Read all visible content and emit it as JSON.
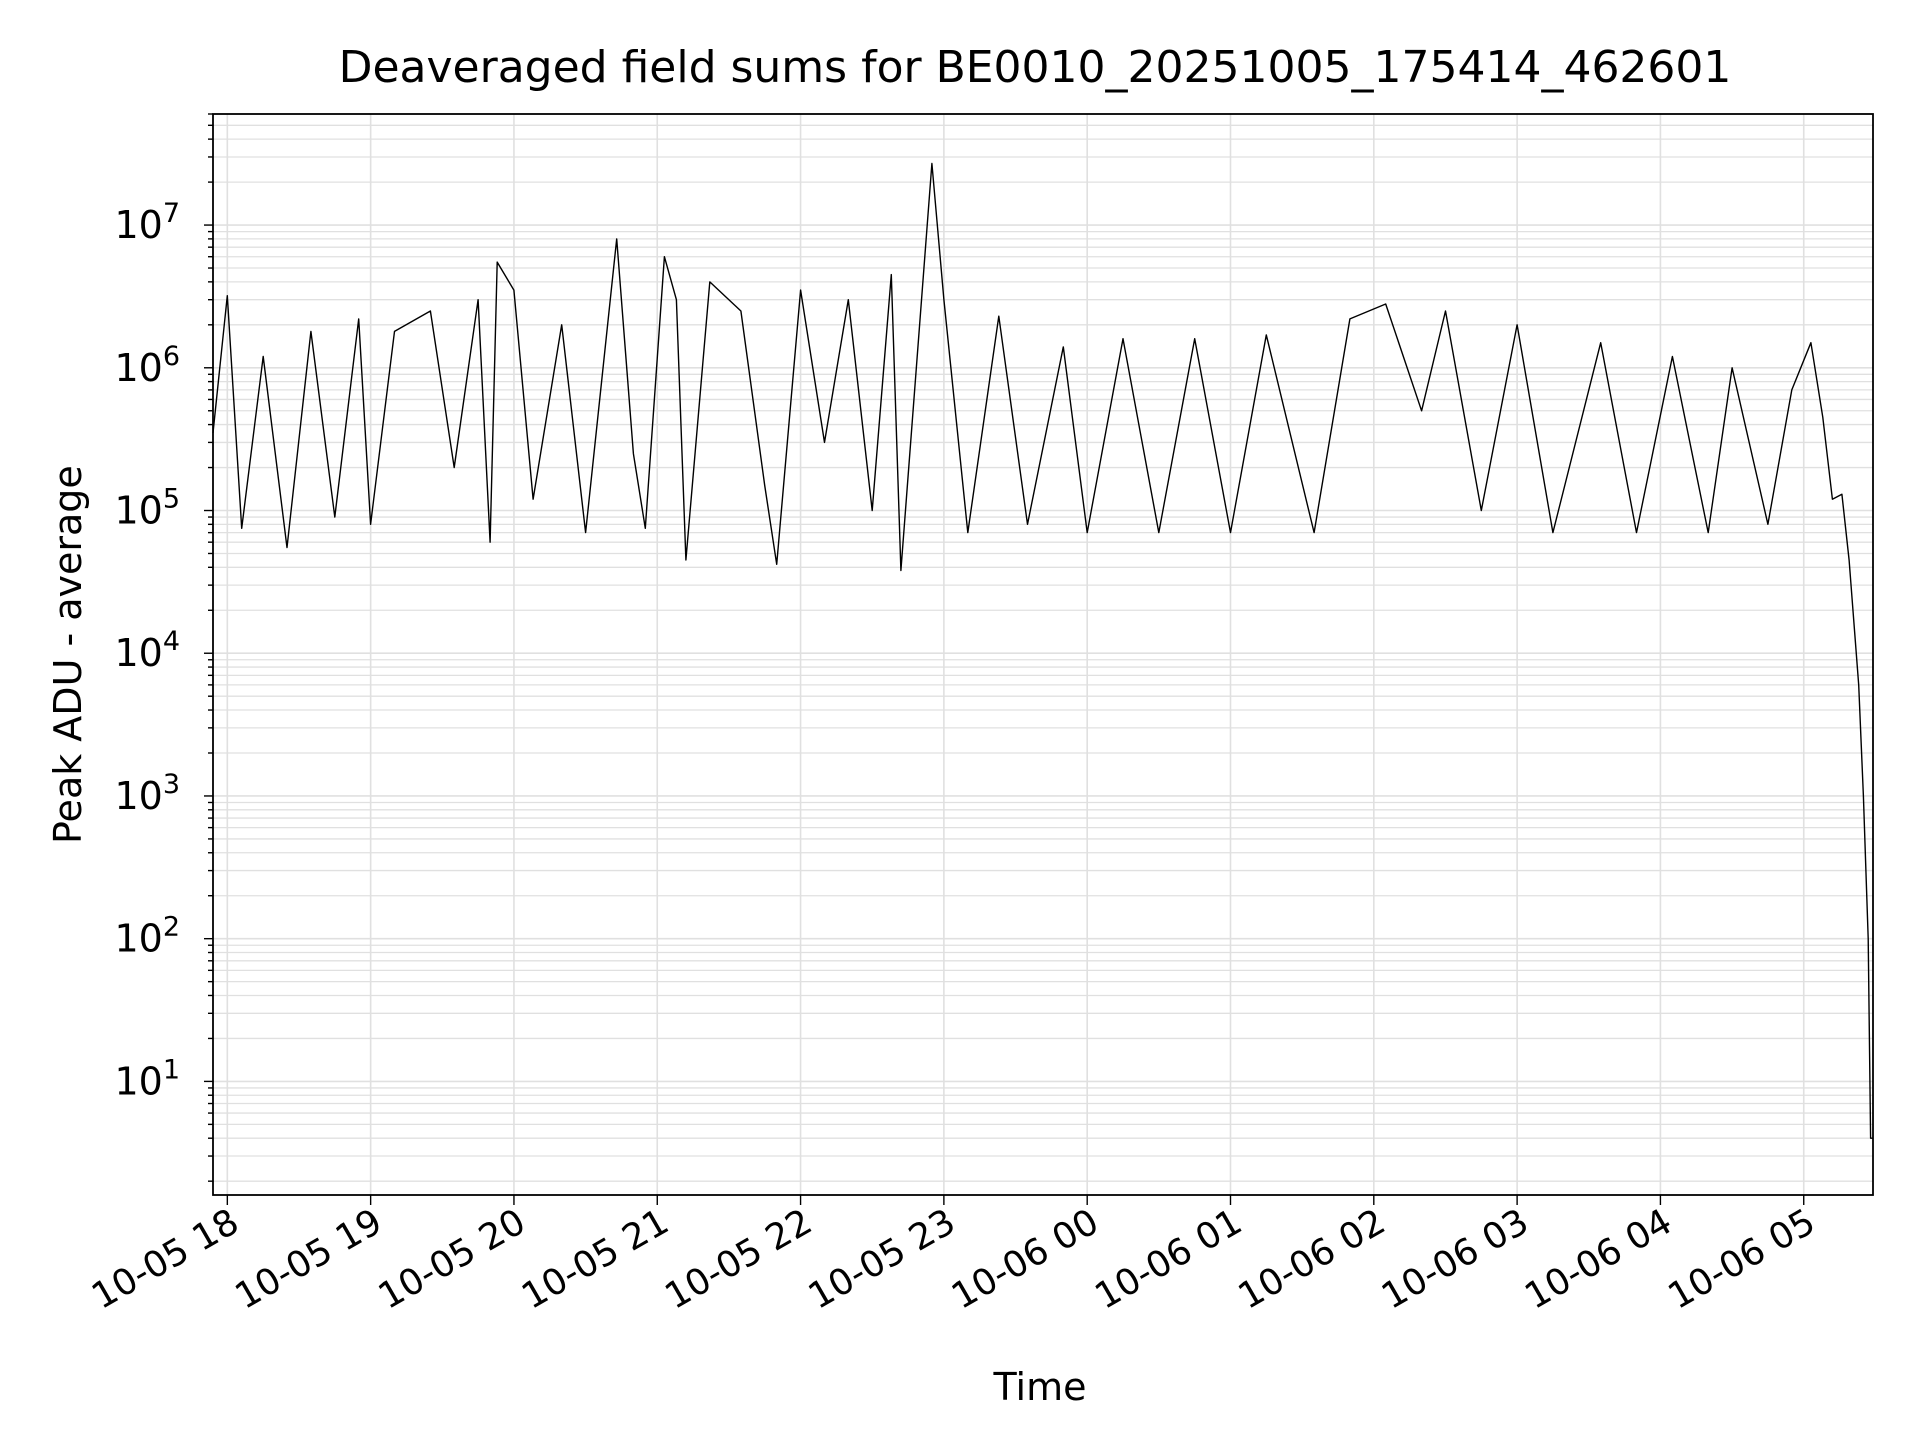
{
  "chart_data": {
    "type": "line",
    "title": "Deaveraged field sums for BE0010_20251005_175414_462601",
    "xlabel": "Time",
    "ylabel": "Peak ADU - average",
    "yscale": "log",
    "grid": true,
    "line_color": "#000000",
    "grid_color": "#e0e0e0",
    "xlim": [
      "2025-10-05 17:54",
      "2025-10-06 05:29"
    ],
    "ylim": [
      1.6,
      60000000
    ],
    "xticks": [
      {
        "t": "2025-10-05 18:00",
        "label": "10-05 18"
      },
      {
        "t": "2025-10-05 19:00",
        "label": "10-05 19"
      },
      {
        "t": "2025-10-05 20:00",
        "label": "10-05 20"
      },
      {
        "t": "2025-10-05 21:00",
        "label": "10-05 21"
      },
      {
        "t": "2025-10-05 22:00",
        "label": "10-05 22"
      },
      {
        "t": "2025-10-05 23:00",
        "label": "10-05 23"
      },
      {
        "t": "2025-10-06 00:00",
        "label": "10-06 00"
      },
      {
        "t": "2025-10-06 01:00",
        "label": "10-06 01"
      },
      {
        "t": "2025-10-06 02:00",
        "label": "10-06 02"
      },
      {
        "t": "2025-10-06 03:00",
        "label": "10-06 03"
      },
      {
        "t": "2025-10-06 04:00",
        "label": "10-06 04"
      },
      {
        "t": "2025-10-06 05:00",
        "label": "10-06 05"
      }
    ],
    "yticks": [
      {
        "value": 10,
        "base": "10",
        "exp": "1"
      },
      {
        "value": 100,
        "base": "10",
        "exp": "2"
      },
      {
        "value": 1000,
        "base": "10",
        "exp": "3"
      },
      {
        "value": 10000,
        "base": "10",
        "exp": "4"
      },
      {
        "value": 100000,
        "base": "10",
        "exp": "5"
      },
      {
        "value": 1000000,
        "base": "10",
        "exp": "6"
      },
      {
        "value": 10000000,
        "base": "10",
        "exp": "7"
      }
    ],
    "series": [
      {
        "points": [
          [
            "2025-10-05 17:54",
            350000
          ],
          [
            "2025-10-05 18:00",
            3200000
          ],
          [
            "2025-10-05 18:06",
            75000
          ],
          [
            "2025-10-05 18:15",
            1200000
          ],
          [
            "2025-10-05 18:25",
            55000
          ],
          [
            "2025-10-05 18:35",
            1800000
          ],
          [
            "2025-10-05 18:45",
            90000
          ],
          [
            "2025-10-05 18:55",
            2200000
          ],
          [
            "2025-10-05 19:00",
            80000
          ],
          [
            "2025-10-05 19:10",
            1800000
          ],
          [
            "2025-10-05 19:25",
            2500000
          ],
          [
            "2025-10-05 19:35",
            200000
          ],
          [
            "2025-10-05 19:45",
            3000000
          ],
          [
            "2025-10-05 19:50",
            60000
          ],
          [
            "2025-10-05 19:53",
            5500000
          ],
          [
            "2025-10-05 20:00",
            3500000
          ],
          [
            "2025-10-05 20:08",
            120000
          ],
          [
            "2025-10-05 20:20",
            2000000
          ],
          [
            "2025-10-05 20:30",
            70000
          ],
          [
            "2025-10-05 20:43",
            8000000
          ],
          [
            "2025-10-05 20:50",
            250000
          ],
          [
            "2025-10-05 20:55",
            75000
          ],
          [
            "2025-10-05 21:03",
            6000000
          ],
          [
            "2025-10-05 21:08",
            3000000
          ],
          [
            "2025-10-05 21:12",
            45000
          ],
          [
            "2025-10-05 21:22",
            4000000
          ],
          [
            "2025-10-05 21:35",
            2500000
          ],
          [
            "2025-10-05 21:45",
            150000
          ],
          [
            "2025-10-05 21:50",
            42000
          ],
          [
            "2025-10-05 22:00",
            3500000
          ],
          [
            "2025-10-05 22:10",
            300000
          ],
          [
            "2025-10-05 22:20",
            3000000
          ],
          [
            "2025-10-05 22:30",
            100000
          ],
          [
            "2025-10-05 22:38",
            4500000
          ],
          [
            "2025-10-05 22:42",
            38000
          ],
          [
            "2025-10-05 22:55",
            27000000
          ],
          [
            "2025-10-05 23:00",
            3000000
          ],
          [
            "2025-10-05 23:10",
            70000
          ],
          [
            "2025-10-05 23:23",
            2300000
          ],
          [
            "2025-10-05 23:35",
            80000
          ],
          [
            "2025-10-05 23:50",
            1400000
          ],
          [
            "2025-10-06 00:00",
            70000
          ],
          [
            "2025-10-06 00:15",
            1600000
          ],
          [
            "2025-10-06 00:30",
            70000
          ],
          [
            "2025-10-06 00:45",
            1600000
          ],
          [
            "2025-10-06 01:00",
            70000
          ],
          [
            "2025-10-06 01:15",
            1700000
          ],
          [
            "2025-10-06 01:35",
            70000
          ],
          [
            "2025-10-06 01:50",
            2200000
          ],
          [
            "2025-10-06 02:05",
            2800000
          ],
          [
            "2025-10-06 02:20",
            500000
          ],
          [
            "2025-10-06 02:30",
            2500000
          ],
          [
            "2025-10-06 02:45",
            100000
          ],
          [
            "2025-10-06 03:00",
            2000000
          ],
          [
            "2025-10-06 03:15",
            70000
          ],
          [
            "2025-10-06 03:35",
            1500000
          ],
          [
            "2025-10-06 03:50",
            70000
          ],
          [
            "2025-10-06 04:05",
            1200000
          ],
          [
            "2025-10-06 04:20",
            70000
          ],
          [
            "2025-10-06 04:30",
            1000000
          ],
          [
            "2025-10-06 04:45",
            80000
          ],
          [
            "2025-10-06 04:55",
            700000
          ],
          [
            "2025-10-06 05:03",
            1500000
          ],
          [
            "2025-10-06 05:08",
            450000
          ],
          [
            "2025-10-06 05:12",
            120000
          ],
          [
            "2025-10-06 05:16",
            130000
          ],
          [
            "2025-10-06 05:19",
            45000
          ],
          [
            "2025-10-06 05:23",
            6000
          ],
          [
            "2025-10-06 05:25",
            1000
          ],
          [
            "2025-10-06 05:27",
            100
          ],
          [
            "2025-10-06 05:28",
            4
          ],
          [
            "2025-10-06 05:29",
            4
          ]
        ]
      }
    ]
  }
}
